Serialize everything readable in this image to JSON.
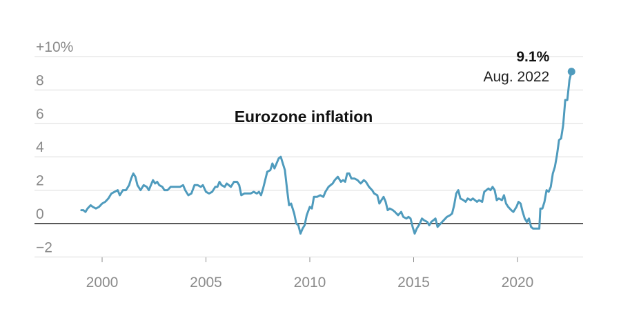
{
  "chart_data": {
    "type": "line",
    "title": "Eurozone inflation",
    "xlabel": "",
    "ylabel": "",
    "xlim": [
      1997.3,
      2023.0
    ],
    "ylim": [
      -2.6,
      10
    ],
    "x_ticks": [
      2000,
      2005,
      2010,
      2015,
      2020
    ],
    "x_tick_labels": [
      "2000",
      "2005",
      "2010",
      "2015",
      "2020"
    ],
    "y_ticks": [
      -2,
      0,
      2,
      4,
      6,
      8,
      10
    ],
    "y_tick_labels": [
      "−2",
      "0",
      "2",
      "4",
      "6",
      "8",
      "+10%"
    ],
    "grid": true,
    "line_color": "#4f9bbd",
    "zero_line_color": "#222222",
    "grid_color": "#dcdcdc",
    "annotation": {
      "value": "9.1%",
      "label": "Aug. 2022",
      "x": 2022.6,
      "y": 9.1
    },
    "series": [
      {
        "name": "",
        "points": [
          [
            1999.0,
            0.8
          ],
          [
            1999.1,
            0.8
          ],
          [
            1999.2,
            0.7
          ],
          [
            1999.3,
            0.9
          ],
          [
            1999.45,
            1.1
          ],
          [
            1999.55,
            1.0
          ],
          [
            1999.7,
            0.9
          ],
          [
            1999.85,
            1.0
          ],
          [
            2000.0,
            1.2
          ],
          [
            2000.15,
            1.3
          ],
          [
            2000.3,
            1.5
          ],
          [
            2000.45,
            1.8
          ],
          [
            2000.6,
            1.9
          ],
          [
            2000.75,
            2.0
          ],
          [
            2000.85,
            1.7
          ],
          [
            2001.0,
            2.0
          ],
          [
            2001.15,
            2.0
          ],
          [
            2001.3,
            2.3
          ],
          [
            2001.4,
            2.7
          ],
          [
            2001.5,
            3.0
          ],
          [
            2001.6,
            2.8
          ],
          [
            2001.7,
            2.3
          ],
          [
            2001.85,
            2.0
          ],
          [
            2002.0,
            2.3
          ],
          [
            2002.15,
            2.2
          ],
          [
            2002.25,
            2.0
          ],
          [
            2002.35,
            2.3
          ],
          [
            2002.45,
            2.6
          ],
          [
            2002.55,
            2.4
          ],
          [
            2002.65,
            2.5
          ],
          [
            2002.75,
            2.3
          ],
          [
            2002.9,
            2.2
          ],
          [
            2003.0,
            2.0
          ],
          [
            2003.15,
            2.0
          ],
          [
            2003.3,
            2.2
          ],
          [
            2003.45,
            2.2
          ],
          [
            2003.6,
            2.2
          ],
          [
            2003.75,
            2.2
          ],
          [
            2003.9,
            2.3
          ],
          [
            2004.0,
            2.0
          ],
          [
            2004.15,
            1.7
          ],
          [
            2004.3,
            1.8
          ],
          [
            2004.45,
            2.3
          ],
          [
            2004.6,
            2.3
          ],
          [
            2004.75,
            2.2
          ],
          [
            2004.85,
            2.3
          ],
          [
            2005.0,
            1.9
          ],
          [
            2005.15,
            1.8
          ],
          [
            2005.3,
            1.9
          ],
          [
            2005.45,
            2.2
          ],
          [
            2005.55,
            2.2
          ],
          [
            2005.65,
            2.5
          ],
          [
            2005.75,
            2.3
          ],
          [
            2005.9,
            2.2
          ],
          [
            2006.0,
            2.4
          ],
          [
            2006.1,
            2.3
          ],
          [
            2006.2,
            2.2
          ],
          [
            2006.35,
            2.5
          ],
          [
            2006.5,
            2.5
          ],
          [
            2006.6,
            2.3
          ],
          [
            2006.7,
            1.7
          ],
          [
            2006.85,
            1.8
          ],
          [
            2007.0,
            1.8
          ],
          [
            2007.15,
            1.8
          ],
          [
            2007.3,
            1.9
          ],
          [
            2007.45,
            1.8
          ],
          [
            2007.55,
            1.9
          ],
          [
            2007.65,
            1.7
          ],
          [
            2007.75,
            2.1
          ],
          [
            2007.85,
            2.6
          ],
          [
            2007.95,
            3.1
          ],
          [
            2008.1,
            3.2
          ],
          [
            2008.2,
            3.6
          ],
          [
            2008.3,
            3.3
          ],
          [
            2008.4,
            3.6
          ],
          [
            2008.5,
            3.9
          ],
          [
            2008.6,
            4.0
          ],
          [
            2008.7,
            3.6
          ],
          [
            2008.8,
            3.2
          ],
          [
            2008.9,
            2.1
          ],
          [
            2009.0,
            1.1
          ],
          [
            2009.1,
            1.2
          ],
          [
            2009.25,
            0.6
          ],
          [
            2009.35,
            0.0
          ],
          [
            2009.45,
            -0.1
          ],
          [
            2009.55,
            -0.6
          ],
          [
            2009.65,
            -0.3
          ],
          [
            2009.75,
            -0.1
          ],
          [
            2009.85,
            0.5
          ],
          [
            2010.0,
            1.0
          ],
          [
            2010.1,
            0.9
          ],
          [
            2010.2,
            1.6
          ],
          [
            2010.35,
            1.6
          ],
          [
            2010.5,
            1.7
          ],
          [
            2010.65,
            1.6
          ],
          [
            2010.75,
            1.9
          ],
          [
            2010.9,
            2.2
          ],
          [
            2011.0,
            2.3
          ],
          [
            2011.1,
            2.4
          ],
          [
            2011.2,
            2.6
          ],
          [
            2011.35,
            2.8
          ],
          [
            2011.5,
            2.5
          ],
          [
            2011.6,
            2.6
          ],
          [
            2011.7,
            2.5
          ],
          [
            2011.8,
            3.0
          ],
          [
            2011.9,
            3.0
          ],
          [
            2012.0,
            2.7
          ],
          [
            2012.15,
            2.7
          ],
          [
            2012.3,
            2.6
          ],
          [
            2012.45,
            2.4
          ],
          [
            2012.6,
            2.6
          ],
          [
            2012.7,
            2.5
          ],
          [
            2012.85,
            2.2
          ],
          [
            2013.0,
            2.0
          ],
          [
            2013.1,
            1.8
          ],
          [
            2013.25,
            1.7
          ],
          [
            2013.35,
            1.2
          ],
          [
            2013.45,
            1.4
          ],
          [
            2013.55,
            1.6
          ],
          [
            2013.65,
            1.3
          ],
          [
            2013.75,
            0.8
          ],
          [
            2013.85,
            0.9
          ],
          [
            2014.0,
            0.8
          ],
          [
            2014.1,
            0.7
          ],
          [
            2014.25,
            0.5
          ],
          [
            2014.4,
            0.7
          ],
          [
            2014.5,
            0.4
          ],
          [
            2014.65,
            0.3
          ],
          [
            2014.75,
            0.4
          ],
          [
            2014.85,
            0.3
          ],
          [
            2014.95,
            -0.2
          ],
          [
            2015.05,
            -0.6
          ],
          [
            2015.15,
            -0.3
          ],
          [
            2015.3,
            0.0
          ],
          [
            2015.4,
            0.3
          ],
          [
            2015.5,
            0.2
          ],
          [
            2015.65,
            0.1
          ],
          [
            2015.75,
            -0.1
          ],
          [
            2015.85,
            0.1
          ],
          [
            2015.95,
            0.2
          ],
          [
            2016.05,
            0.3
          ],
          [
            2016.15,
            -0.2
          ],
          [
            2016.3,
            0.0
          ],
          [
            2016.45,
            0.2
          ],
          [
            2016.6,
            0.4
          ],
          [
            2016.75,
            0.5
          ],
          [
            2016.85,
            0.6
          ],
          [
            2016.95,
            1.1
          ],
          [
            2017.05,
            1.8
          ],
          [
            2017.15,
            2.0
          ],
          [
            2017.25,
            1.5
          ],
          [
            2017.4,
            1.4
          ],
          [
            2017.5,
            1.3
          ],
          [
            2017.6,
            1.5
          ],
          [
            2017.75,
            1.4
          ],
          [
            2017.85,
            1.5
          ],
          [
            2017.95,
            1.4
          ],
          [
            2018.05,
            1.3
          ],
          [
            2018.15,
            1.4
          ],
          [
            2018.3,
            1.3
          ],
          [
            2018.4,
            1.9
          ],
          [
            2018.5,
            2.0
          ],
          [
            2018.6,
            2.1
          ],
          [
            2018.7,
            2.0
          ],
          [
            2018.8,
            2.2
          ],
          [
            2018.9,
            2.0
          ],
          [
            2019.0,
            1.4
          ],
          [
            2019.1,
            1.5
          ],
          [
            2019.25,
            1.4
          ],
          [
            2019.35,
            1.7
          ],
          [
            2019.45,
            1.2
          ],
          [
            2019.55,
            1.0
          ],
          [
            2019.7,
            0.8
          ],
          [
            2019.8,
            0.7
          ],
          [
            2019.95,
            1.0
          ],
          [
            2020.05,
            1.3
          ],
          [
            2020.15,
            1.2
          ],
          [
            2020.25,
            0.7
          ],
          [
            2020.35,
            0.3
          ],
          [
            2020.45,
            0.1
          ],
          [
            2020.55,
            0.3
          ],
          [
            2020.65,
            -0.2
          ],
          [
            2020.75,
            -0.3
          ],
          [
            2020.9,
            -0.3
          ],
          [
            2021.05,
            -0.3
          ],
          [
            2021.1,
            0.9
          ],
          [
            2021.2,
            0.9
          ],
          [
            2021.3,
            1.3
          ],
          [
            2021.4,
            2.0
          ],
          [
            2021.5,
            1.9
          ],
          [
            2021.6,
            2.2
          ],
          [
            2021.7,
            3.0
          ],
          [
            2021.8,
            3.4
          ],
          [
            2021.9,
            4.1
          ],
          [
            2022.0,
            5.0
          ],
          [
            2022.1,
            5.1
          ],
          [
            2022.2,
            5.9
          ],
          [
            2022.3,
            7.4
          ],
          [
            2022.4,
            7.4
          ],
          [
            2022.5,
            8.6
          ],
          [
            2022.6,
            9.1
          ]
        ]
      }
    ]
  }
}
